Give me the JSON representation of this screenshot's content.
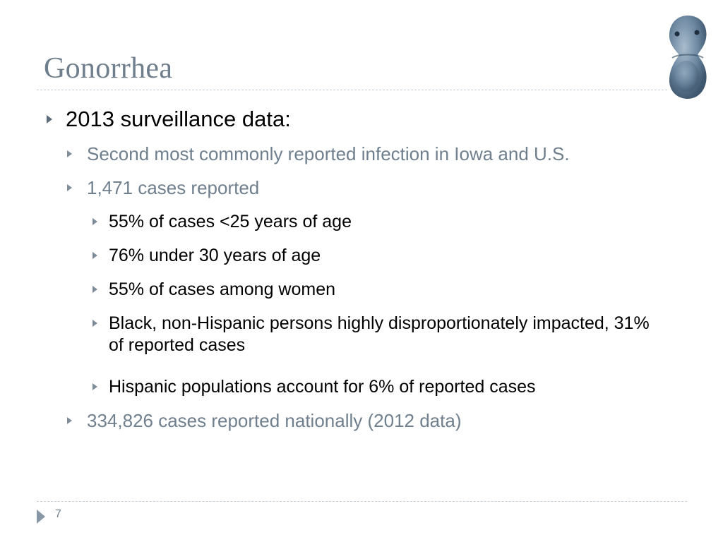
{
  "slide": {
    "title": "Gonorrhea",
    "image_icon": "gonococcus-bacteria-icon",
    "page_number": "7"
  },
  "bullets": [
    {
      "level": 1,
      "text": "2013 surveillance data:"
    },
    {
      "level": 2,
      "text": "Second most commonly reported infection in Iowa and U.S."
    },
    {
      "level": 2,
      "text": "1,471 cases reported"
    },
    {
      "level": 3,
      "text": "55% of cases <25 years of age"
    },
    {
      "level": 3,
      "text": "76% under 30 years of age"
    },
    {
      "level": 3,
      "text": "55% of cases among women"
    },
    {
      "level": 3,
      "text": "Black, non-Hispanic persons highly disproportionately impacted, 31% of reported cases"
    },
    {
      "level": 3,
      "text": "Hispanic populations account for 6% of reported cases"
    },
    {
      "level": 2,
      "text": "334,826 cases reported nationally (2012 data)"
    }
  ],
  "colors": {
    "title": "#6f7e8c",
    "level1_text": "#000000",
    "level2_text": "#6f7f8e",
    "level3_text": "#000000",
    "rule": "#c4ccd4"
  }
}
